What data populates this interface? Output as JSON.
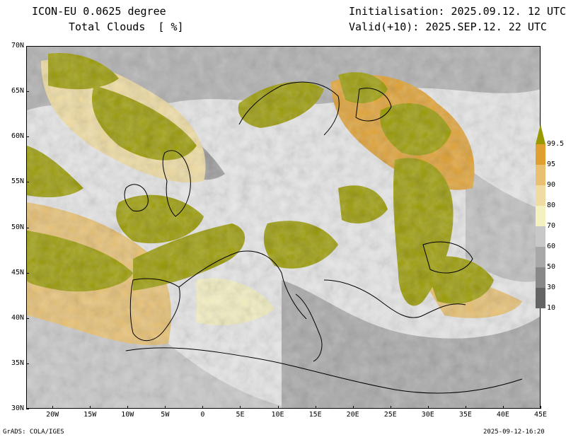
{
  "header": {
    "model": "ICON-EU 0.0625 degree",
    "variable": "Total Clouds  [ %]",
    "init": "Initialisation: 2025.09.12. 12 UTC",
    "valid": "Valid(+10): 2025.SEP.12. 22 UTC"
  },
  "axes": {
    "lat_labels": [
      "70N",
      "65N",
      "60N",
      "55N",
      "50N",
      "45N",
      "40N",
      "35N",
      "30N"
    ],
    "lat_values": [
      70,
      65,
      60,
      55,
      50,
      45,
      40,
      35,
      30
    ],
    "lon_labels": [
      "20W",
      "15W",
      "10W",
      "5W",
      "0",
      "5E",
      "10E",
      "15E",
      "20E",
      "25E",
      "30E",
      "35E",
      "40E",
      "45E"
    ],
    "lon_values": [
      -20,
      -15,
      -10,
      -5,
      0,
      5,
      10,
      15,
      20,
      25,
      30,
      35,
      40,
      45
    ],
    "lat_range": [
      30,
      70
    ],
    "lon_range": [
      -23.5,
      45
    ]
  },
  "colorbar": {
    "labels": [
      "99.5",
      "95",
      "90",
      "80",
      "70",
      "60",
      "50",
      "30",
      "10"
    ],
    "colors": {
      "overcast": "#999900",
      "c95": "#e0a030",
      "c90": "#e8c070",
      "c80": "#f0dca0",
      "c70": "#f4f0c0",
      "c60": "#c8c8c8",
      "c50": "#a8a8a8",
      "c30": "#888888",
      "c10": "#646464",
      "clear": "#e6e6e6"
    }
  },
  "footer": {
    "left": "GrADS: COLA/IGES",
    "right": "2025-09-12-16:20"
  }
}
